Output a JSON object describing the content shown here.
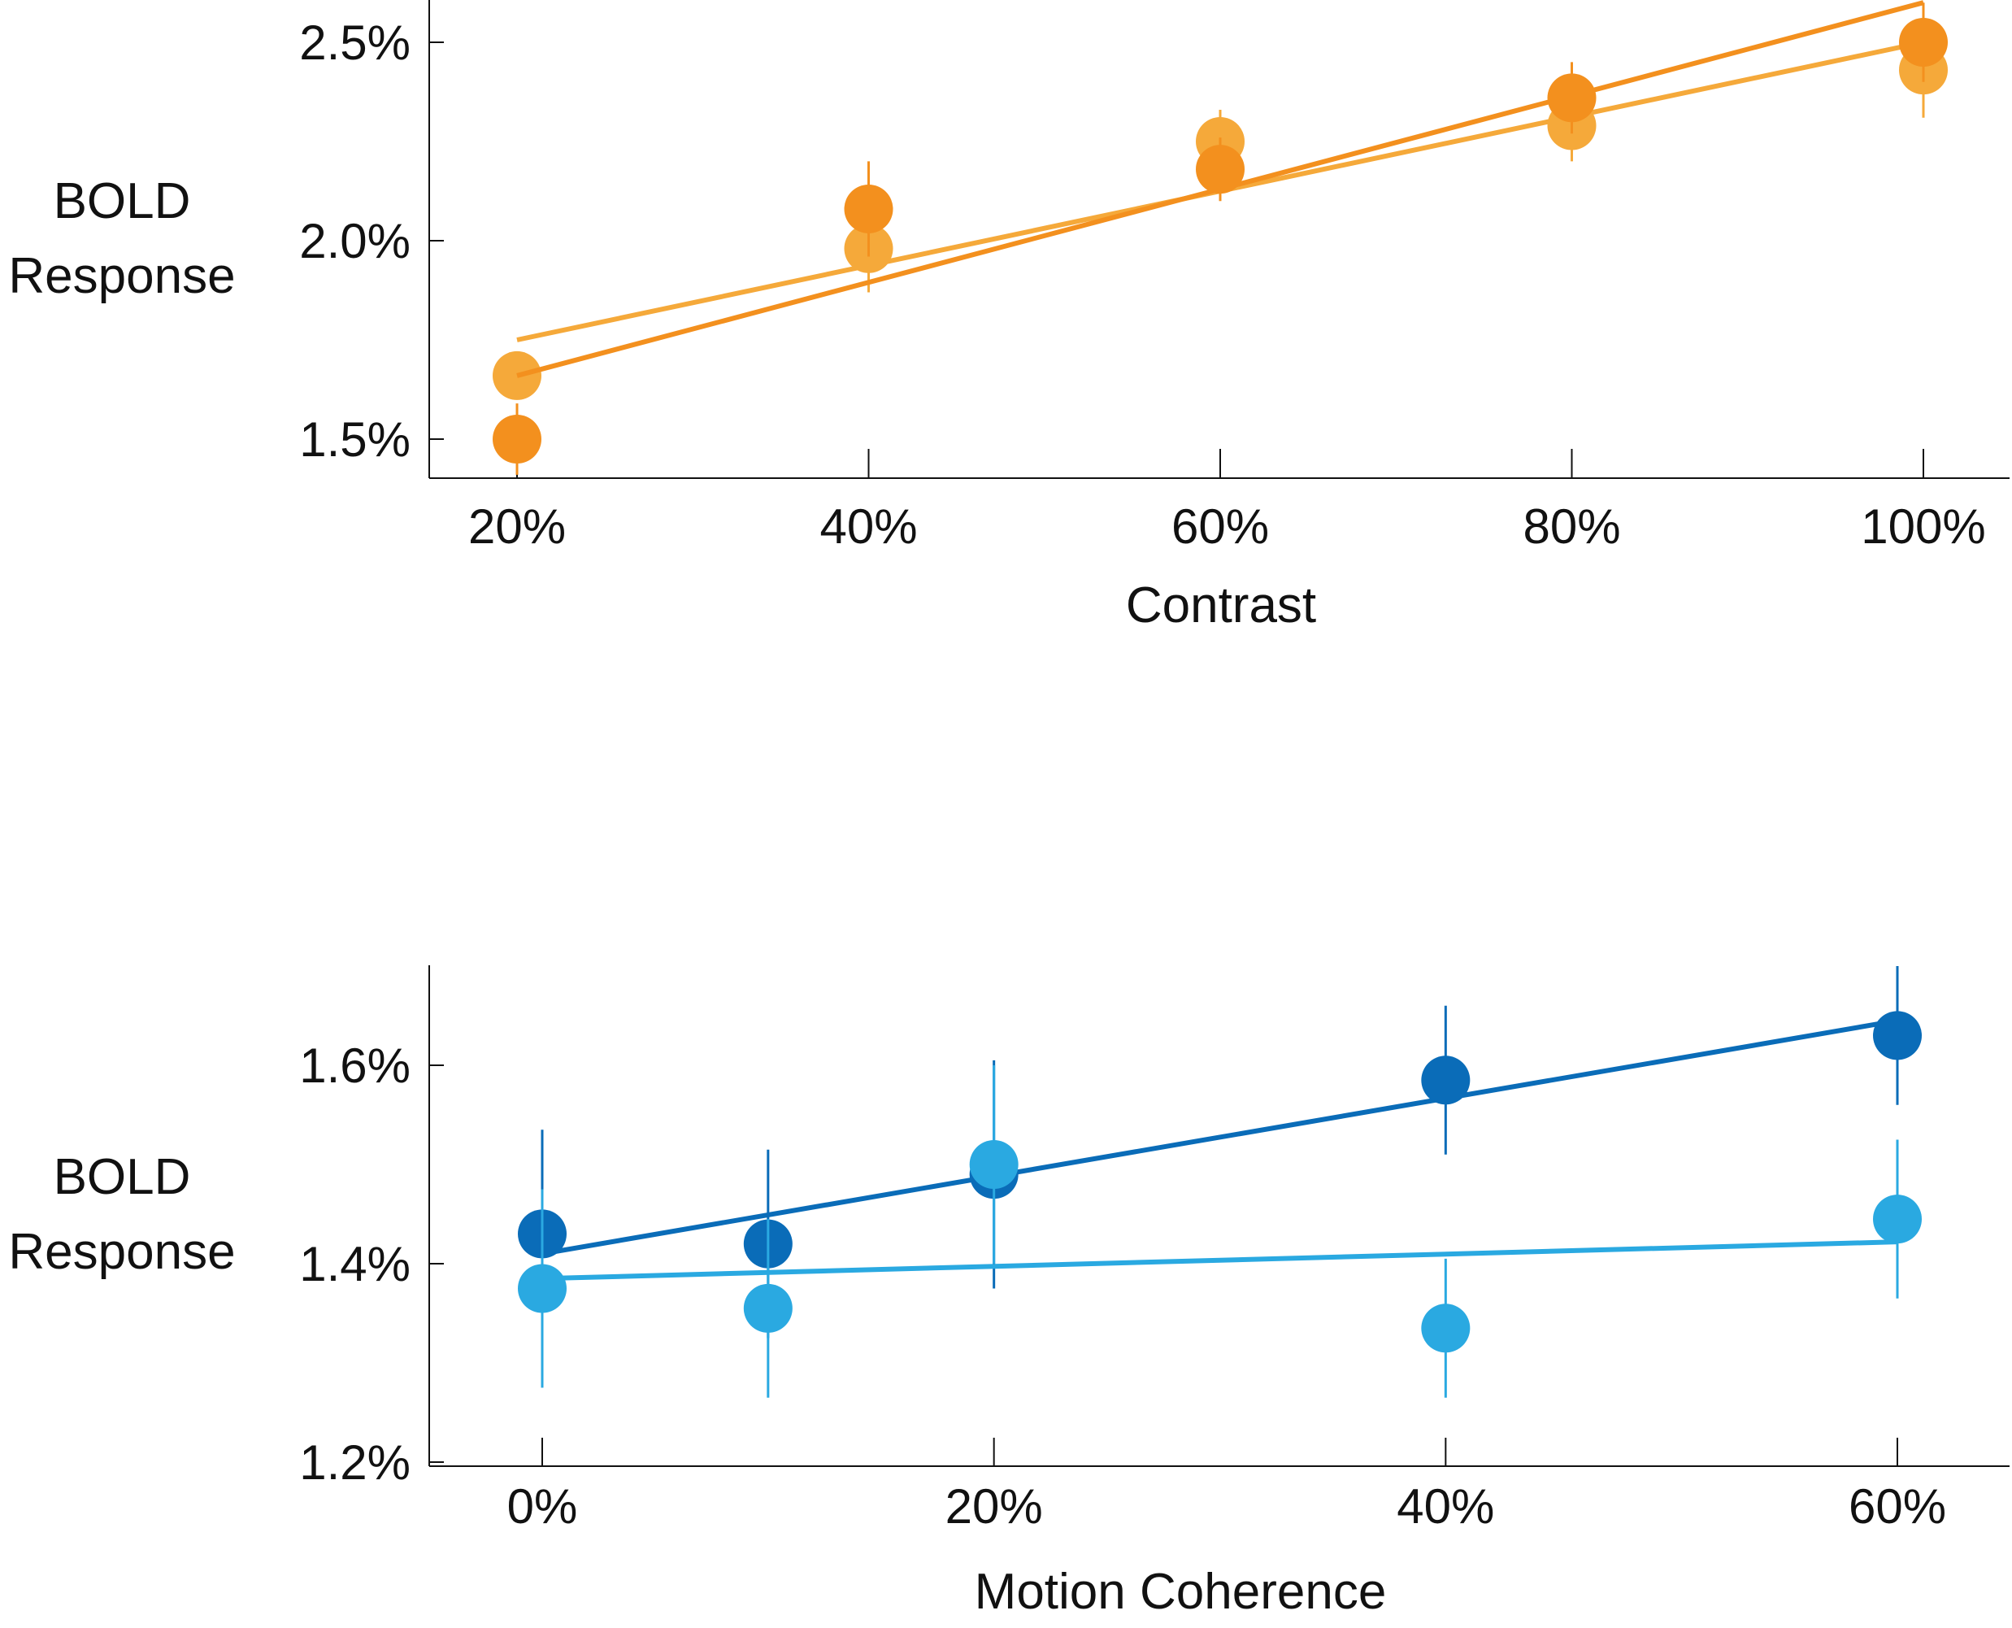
{
  "chart_data": [
    {
      "type": "scatter",
      "title": "",
      "xlabel": "Contrast",
      "ylabel": "BOLD Response",
      "ylabel_lines": [
        "BOLD",
        "Response"
      ],
      "x_ticks": [
        20,
        40,
        60,
        80,
        100
      ],
      "x_tick_labels": [
        "20%",
        "40%",
        "60%",
        "80%",
        "100%"
      ],
      "xlim": [
        15,
        105
      ],
      "y_ticks": [
        1.5,
        2.0,
        2.5
      ],
      "y_tick_labels": [
        "1.5%",
        "2.0%",
        "2.5%"
      ],
      "ylim": [
        1.4,
        2.6
      ],
      "grid": false,
      "legend": "none",
      "series": [
        {
          "color": "#f5a93a",
          "x": [
            20,
            40,
            60,
            80,
            100
          ],
          "y": [
            1.66,
            1.98,
            2.25,
            2.29,
            2.43
          ],
          "err": [
            0.06,
            0.11,
            0.08,
            0.09,
            0.12
          ],
          "fit": [
            1.75,
            2.5
          ]
        },
        {
          "color": "#f3901e",
          "x": [
            20,
            40,
            60,
            80,
            100
          ],
          "y": [
            1.5,
            2.08,
            2.18,
            2.36,
            2.5
          ],
          "err": [
            0.09,
            0.12,
            0.08,
            0.09,
            0.1
          ],
          "fit": [
            1.66,
            2.6
          ]
        }
      ]
    },
    {
      "type": "scatter",
      "title": "",
      "xlabel": "Motion Coherence",
      "ylabel": "BOLD Response",
      "ylabel_lines": [
        "BOLD",
        "Response"
      ],
      "x_ticks": [
        0,
        20,
        40,
        60
      ],
      "x_tick_labels": [
        "0%",
        "20%",
        "40%",
        "60%"
      ],
      "xlim": [
        -5,
        65
      ],
      "y_ticks": [
        1.2,
        1.4,
        1.6
      ],
      "y_tick_labels": [
        "1.2%",
        "1.4%",
        "1.6%"
      ],
      "ylim": [
        1.2,
        1.7
      ],
      "grid": false,
      "legend": "none",
      "series": [
        {
          "color": "#0a6cb8",
          "x": [
            0,
            10,
            20,
            40,
            60
          ],
          "y": [
            1.43,
            1.42,
            1.49,
            1.585,
            1.63
          ],
          "err": [
            0.105,
            0.095,
            0.115,
            0.075,
            0.07
          ],
          "fit": [
            1.41,
            1.645
          ]
        },
        {
          "color": "#2aa9e1",
          "x": [
            0,
            10,
            20,
            40,
            60
          ],
          "y": [
            1.375,
            1.355,
            1.5,
            1.335,
            1.445
          ],
          "err": [
            0.1,
            0.09,
            0.1,
            0.07,
            0.08
          ],
          "fit": [
            1.385,
            1.422
          ]
        }
      ]
    }
  ]
}
